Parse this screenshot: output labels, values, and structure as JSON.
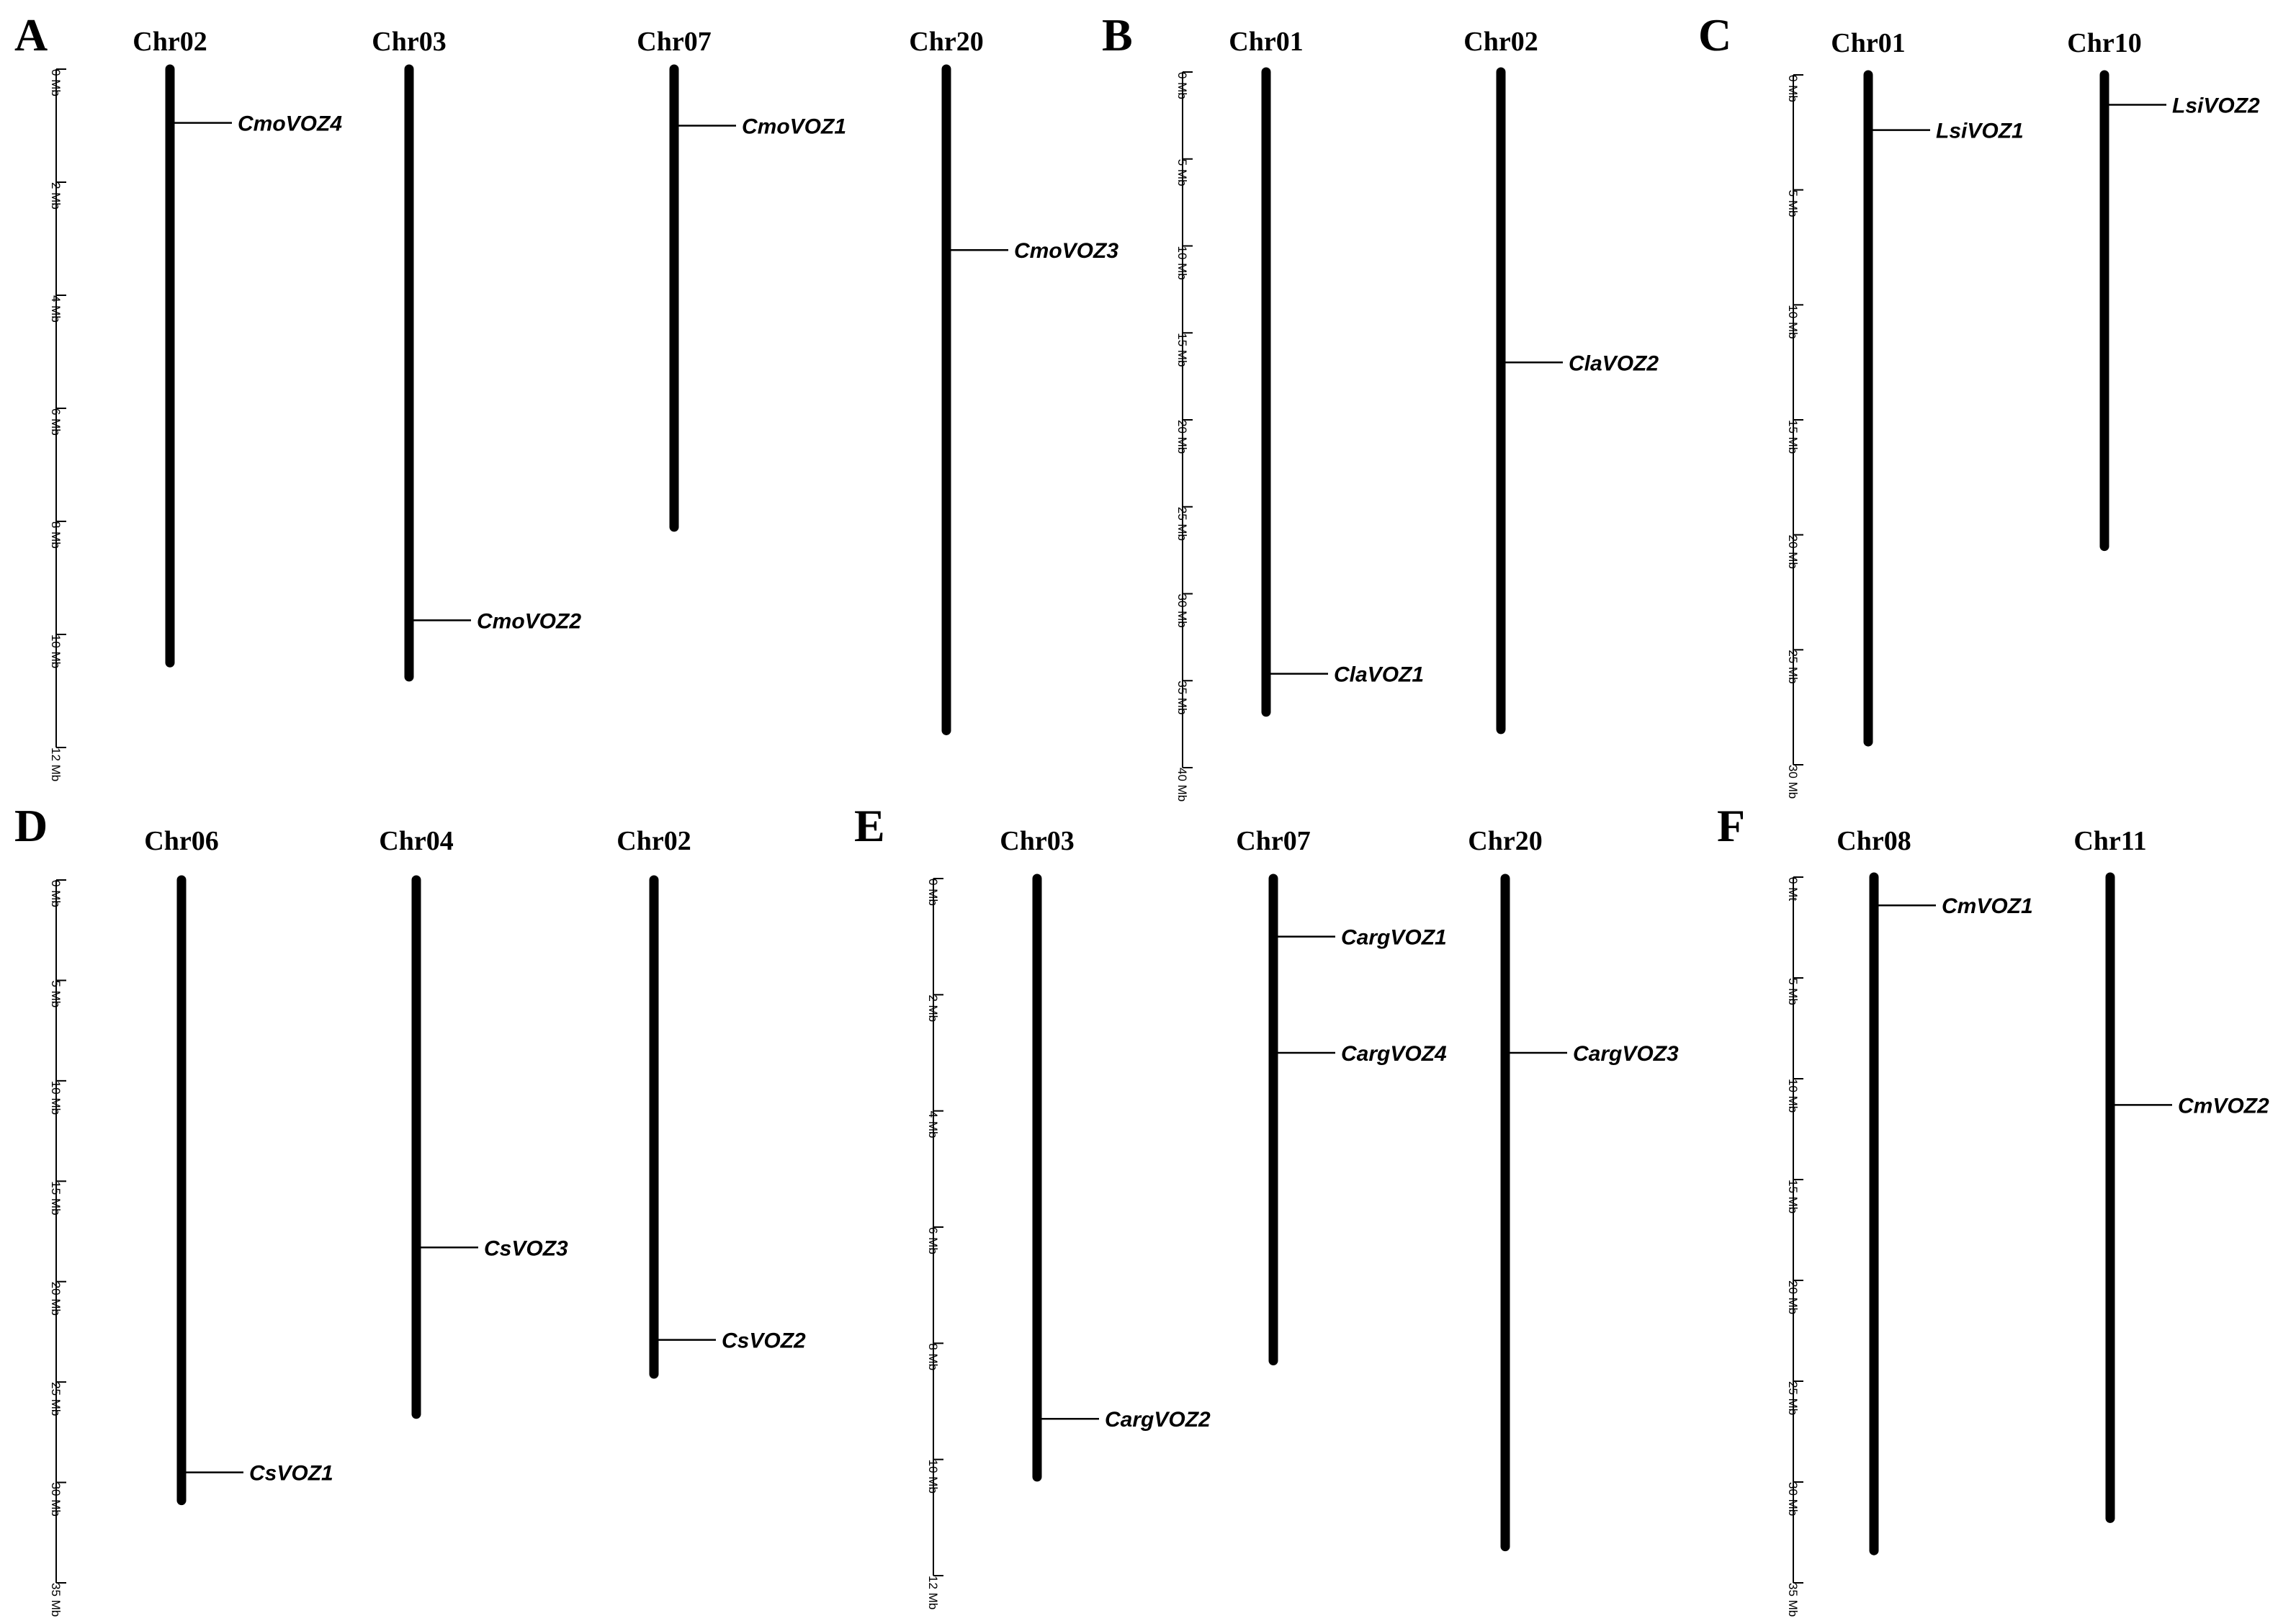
{
  "panels": [
    {
      "id": "A",
      "letter": "A",
      "scale": {
        "min": 0,
        "max": 12,
        "ticks": [
          0,
          2,
          4,
          6,
          8,
          10,
          12
        ],
        "unit": "Mb"
      },
      "chromosomes": [
        {
          "name": "Chr02",
          "length": 10.5,
          "genes": [
            {
              "name": "CmoVOZ4",
              "pos": 0.95
            }
          ]
        },
        {
          "name": "Chr03",
          "length": 10.75,
          "genes": [
            {
              "name": "CmoVOZ2",
              "pos": 9.75
            }
          ]
        },
        {
          "name": "Chr07",
          "length": 8.1,
          "genes": [
            {
              "name": "CmoVOZ1",
              "pos": 1.0
            }
          ]
        },
        {
          "name": "Chr20",
          "length": 11.7,
          "genes": [
            {
              "name": "CmoVOZ3",
              "pos": 3.2
            }
          ]
        }
      ]
    },
    {
      "id": "B",
      "letter": "B",
      "scale": {
        "min": 0,
        "max": 40,
        "ticks": [
          0,
          5,
          10,
          15,
          20,
          25,
          30,
          35,
          40
        ],
        "unit": "Mb"
      },
      "chromosomes": [
        {
          "name": "Chr01",
          "length": 36.8,
          "genes": [
            {
              "name": "ClaVOZ1",
              "pos": 34.6
            }
          ]
        },
        {
          "name": "Chr02",
          "length": 37.8,
          "genes": [
            {
              "name": "ClaVOZ2",
              "pos": 16.7
            }
          ]
        }
      ]
    },
    {
      "id": "C",
      "letter": "C",
      "scale": {
        "min": 0,
        "max": 30,
        "ticks": [
          0,
          5,
          10,
          15,
          20,
          25,
          30
        ],
        "unit": "Mb"
      },
      "chromosomes": [
        {
          "name": "Chr01",
          "length": 29.0,
          "genes": [
            {
              "name": "LsiVOZ1",
              "pos": 2.4
            }
          ]
        },
        {
          "name": "Chr10",
          "length": 20.5,
          "genes": [
            {
              "name": "LsiVOZ2",
              "pos": 1.3
            }
          ]
        }
      ]
    },
    {
      "id": "D",
      "letter": "D",
      "scale": {
        "min": 0,
        "max": 35,
        "ticks": [
          0,
          5,
          10,
          15,
          20,
          25,
          30,
          35
        ],
        "unit": "Mb"
      },
      "chromosomes": [
        {
          "name": "Chr06",
          "length": 30.9,
          "genes": [
            {
              "name": "CsVOZ1",
              "pos": 29.5
            }
          ]
        },
        {
          "name": "Chr04",
          "length": 26.6,
          "genes": [
            {
              "name": "CsVOZ3",
              "pos": 18.3
            }
          ]
        },
        {
          "name": "Chr02",
          "length": 24.6,
          "genes": [
            {
              "name": "CsVOZ2",
              "pos": 22.9
            }
          ]
        }
      ]
    },
    {
      "id": "E",
      "letter": "E",
      "scale": {
        "min": 0,
        "max": 12,
        "ticks": [
          0,
          2,
          4,
          6,
          8,
          10,
          12
        ],
        "unit": "Mb"
      },
      "chromosomes": [
        {
          "name": "Chr03",
          "length": 10.3,
          "genes": [
            {
              "name": "CargVOZ2",
              "pos": 9.3
            }
          ]
        },
        {
          "name": "Chr07",
          "length": 8.3,
          "genes": [
            {
              "name": "CargVOZ1",
              "pos": 1.0
            },
            {
              "name": "CargVOZ4",
              "pos": 3.0
            }
          ]
        },
        {
          "name": "Chr20",
          "length": 11.5,
          "genes": [
            {
              "name": "CargVOZ3",
              "pos": 3.0
            }
          ]
        }
      ]
    },
    {
      "id": "F",
      "letter": "F",
      "scale": {
        "min": 0,
        "max": 35,
        "ticks": [
          0,
          5,
          10,
          15,
          20,
          25,
          30,
          35
        ],
        "unit": "Mb",
        "first_tick_label": "0 Mt"
      },
      "chromosomes": [
        {
          "name": "Chr08",
          "length": 33.4,
          "genes": [
            {
              "name": "CmVOZ1",
              "pos": 1.4
            }
          ]
        },
        {
          "name": "Chr11",
          "length": 31.8,
          "genes": [
            {
              "name": "CmVOZ2",
              "pos": 11.3
            }
          ]
        }
      ]
    }
  ]
}
